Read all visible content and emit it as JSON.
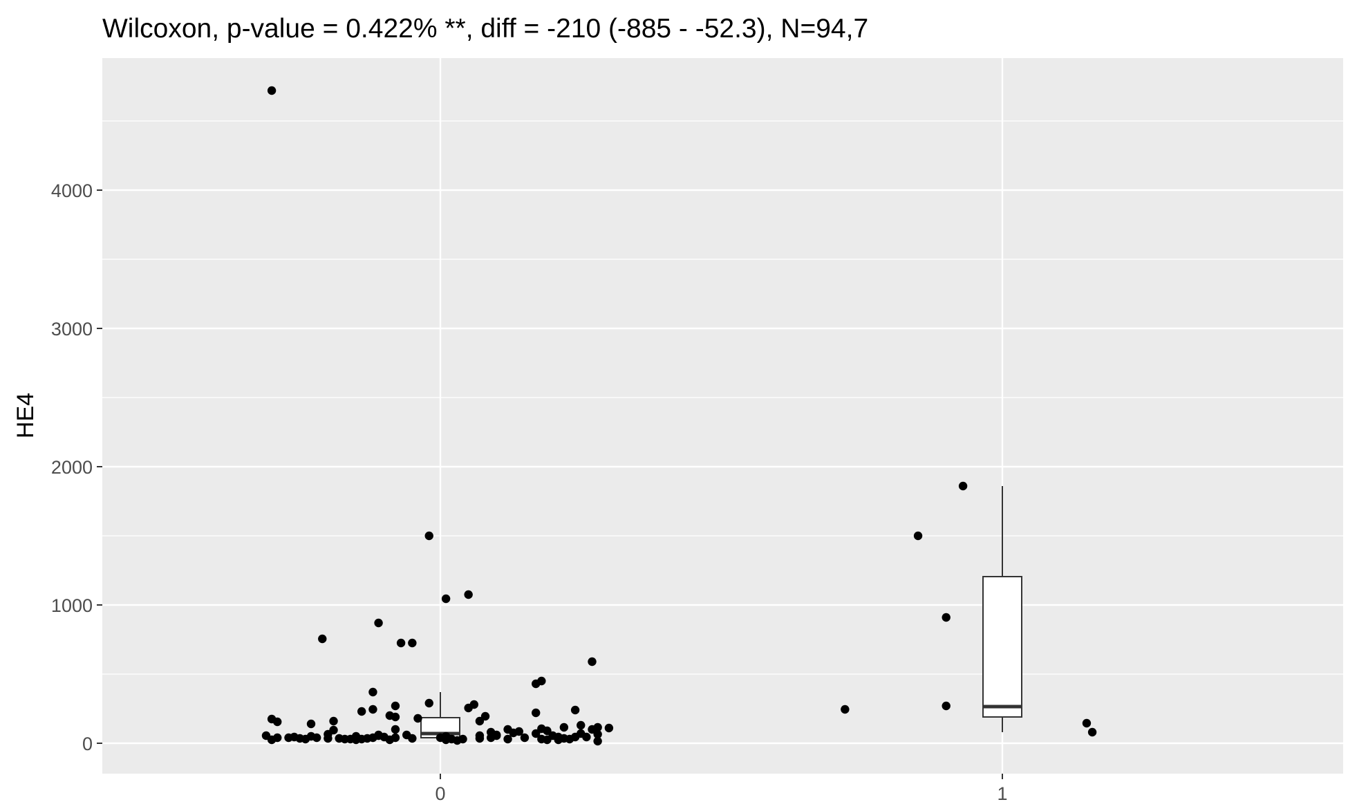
{
  "chart_data": {
    "type": "scatter",
    "title": "Wilcoxon, p-value = 0.422% **, diff = -210 (-885 - -52.3), N=94,7",
    "xlabel": "",
    "ylabel": "HE4",
    "categories": [
      "0",
      "1"
    ],
    "ylim": [
      -220,
      4960
    ],
    "y_ticks": [
      0,
      1000,
      2000,
      3000,
      4000
    ],
    "y_tick_labels": [
      "0",
      "1000",
      "2000",
      "3000",
      "4000"
    ],
    "grid": true,
    "colors": {
      "panel": "#ebebeb",
      "grid": "#ffffff",
      "points": "#000000",
      "box_fill": "#ffffff",
      "box_line": "#333333"
    },
    "boxplots": [
      {
        "category": "0",
        "whisker_low": 20,
        "q1": 40,
        "median": 70,
        "q3": 185,
        "whisker_high": 370
      },
      {
        "category": "1",
        "whisker_low": 80,
        "q1": 190,
        "median": 265,
        "q3": 1205,
        "whisker_high": 1860
      }
    ],
    "points": [
      {
        "x": -0.3,
        "y": 4720
      },
      {
        "x": -0.02,
        "y": 1500
      },
      {
        "x": 0.05,
        "y": 1075
      },
      {
        "x": 0.01,
        "y": 1045
      },
      {
        "x": -0.11,
        "y": 870
      },
      {
        "x": -0.21,
        "y": 755
      },
      {
        "x": -0.07,
        "y": 725
      },
      {
        "x": -0.05,
        "y": 725
      },
      {
        "x": 0.27,
        "y": 590
      },
      {
        "x": 0.18,
        "y": 450
      },
      {
        "x": 0.17,
        "y": 430
      },
      {
        "x": -0.12,
        "y": 370
      },
      {
        "x": -0.02,
        "y": 290
      },
      {
        "x": 0.06,
        "y": 280
      },
      {
        "x": 0.05,
        "y": 255
      },
      {
        "x": -0.08,
        "y": 270
      },
      {
        "x": -0.12,
        "y": 245
      },
      {
        "x": 0.24,
        "y": 240
      },
      {
        "x": -0.14,
        "y": 230
      },
      {
        "x": 0.17,
        "y": 220
      },
      {
        "x": -0.09,
        "y": 200
      },
      {
        "x": -0.08,
        "y": 190
      },
      {
        "x": -0.04,
        "y": 180
      },
      {
        "x": -0.3,
        "y": 175
      },
      {
        "x": 0.08,
        "y": 195
      },
      {
        "x": -0.19,
        "y": 160
      },
      {
        "x": -0.29,
        "y": 155
      },
      {
        "x": -0.23,
        "y": 140
      },
      {
        "x": 0.07,
        "y": 160
      },
      {
        "x": 0.25,
        "y": 130
      },
      {
        "x": 0.28,
        "y": 115
      },
      {
        "x": 0.3,
        "y": 110
      },
      {
        "x": 0.22,
        "y": 115
      },
      {
        "x": -0.08,
        "y": 100
      },
      {
        "x": -0.19,
        "y": 95
      },
      {
        "x": 0.12,
        "y": 100
      },
      {
        "x": 0.18,
        "y": 105
      },
      {
        "x": 0.19,
        "y": 90
      },
      {
        "x": 0.14,
        "y": 85
      },
      {
        "x": 0.09,
        "y": 80
      },
      {
        "x": 0.13,
        "y": 75
      },
      {
        "x": 0.17,
        "y": 70
      },
      {
        "x": 0.25,
        "y": 70
      },
      {
        "x": 0.28,
        "y": 65
      },
      {
        "x": -0.31,
        "y": 55
      },
      {
        "x": -0.11,
        "y": 60
      },
      {
        "x": -0.2,
        "y": 65
      },
      {
        "x": -0.23,
        "y": 50
      },
      {
        "x": -0.15,
        "y": 50
      },
      {
        "x": -0.11,
        "y": 55
      },
      {
        "x": 0.1,
        "y": 60
      },
      {
        "x": 0.07,
        "y": 55
      },
      {
        "x": 0.2,
        "y": 55
      },
      {
        "x": 0.21,
        "y": 45
      },
      {
        "x": 0.24,
        "y": 45
      },
      {
        "x": 0.26,
        "y": 45
      },
      {
        "x": 0.15,
        "y": 40
      },
      {
        "x": -0.29,
        "y": 40
      },
      {
        "x": -0.27,
        "y": 40
      },
      {
        "x": -0.25,
        "y": 35
      },
      {
        "x": -0.22,
        "y": 40
      },
      {
        "x": -0.18,
        "y": 35
      },
      {
        "x": -0.13,
        "y": 35
      },
      {
        "x": -0.12,
        "y": 40
      },
      {
        "x": -0.1,
        "y": 45
      },
      {
        "x": -0.08,
        "y": 40
      },
      {
        "x": -0.05,
        "y": 35
      },
      {
        "x": 0.0,
        "y": 40
      },
      {
        "x": 0.02,
        "y": 30
      },
      {
        "x": 0.07,
        "y": 35
      },
      {
        "x": 0.09,
        "y": 40
      },
      {
        "x": 0.12,
        "y": 30
      },
      {
        "x": 0.18,
        "y": 30
      },
      {
        "x": 0.22,
        "y": 35
      },
      {
        "x": -0.3,
        "y": 25
      },
      {
        "x": -0.24,
        "y": 30
      },
      {
        "x": -0.2,
        "y": 35
      },
      {
        "x": -0.16,
        "y": 30
      },
      {
        "x": -0.15,
        "y": 25
      },
      {
        "x": -0.09,
        "y": 25
      },
      {
        "x": 0.01,
        "y": 25
      },
      {
        "x": 0.03,
        "y": 20
      },
      {
        "x": 0.19,
        "y": 25
      },
      {
        "x": 0.23,
        "y": 30
      },
      {
        "x": 0.28,
        "y": 15
      },
      {
        "x": -0.17,
        "y": 30
      },
      {
        "x": -0.14,
        "y": 30
      },
      {
        "x": 0.21,
        "y": 25
      },
      {
        "x": 0.01,
        "y": 50
      },
      {
        "x": -0.06,
        "y": 60
      },
      {
        "x": 0.1,
        "y": 55
      },
      {
        "x": -0.26,
        "y": 45
      },
      {
        "x": 0.27,
        "y": 100
      },
      {
        "x": 0.04,
        "y": 30
      },
      {
        "x": 0.72,
        "y": 245
      },
      {
        "x": 0.85,
        "y": 1500
      },
      {
        "x": 0.9,
        "y": 910
      },
      {
        "x": 0.9,
        "y": 270
      },
      {
        "x": 0.93,
        "y": 1860
      },
      {
        "x": 1.15,
        "y": 145
      },
      {
        "x": 1.16,
        "y": 80
      }
    ]
  }
}
